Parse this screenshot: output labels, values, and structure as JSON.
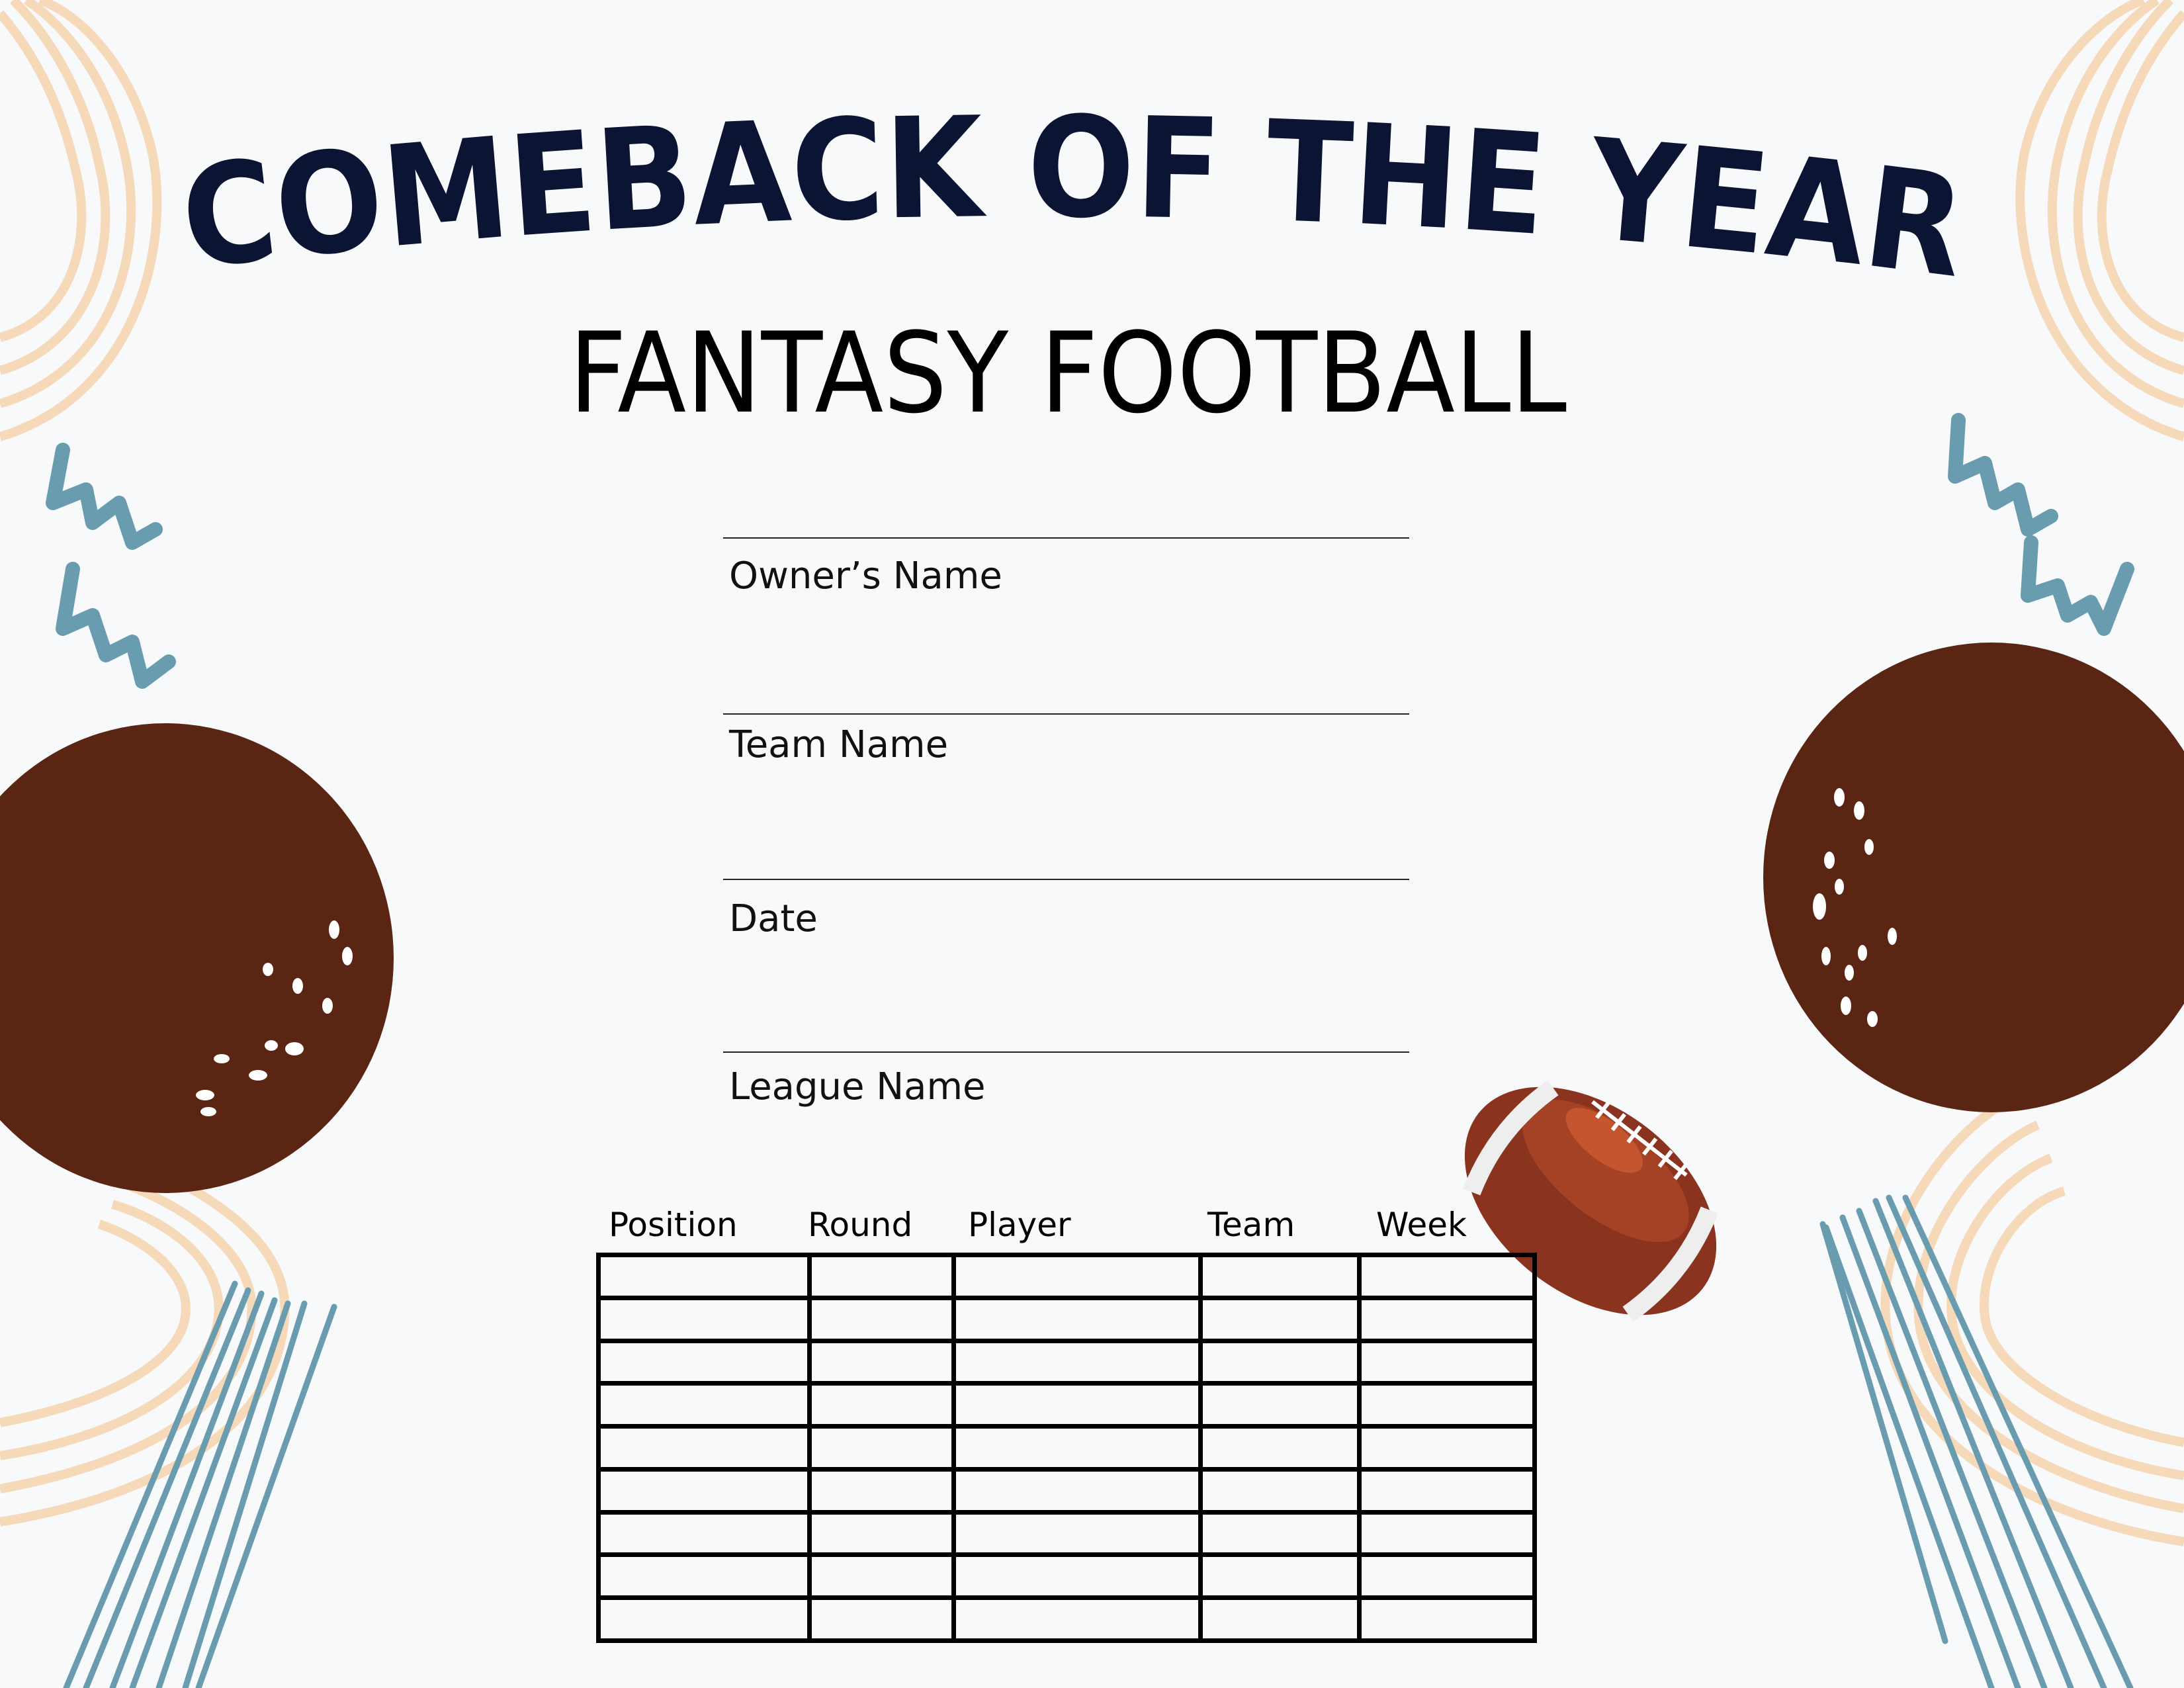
{
  "title": "COMEBACK OF THE YEAR",
  "subtitle": "FANTASY FOOTBALL",
  "fields": [
    {
      "label": "Owner’s Name",
      "value": ""
    },
    {
      "label": "Team Name",
      "value": ""
    },
    {
      "label": "Date",
      "value": ""
    },
    {
      "label": "League Name",
      "value": ""
    }
  ],
  "table": {
    "columns": [
      "Position",
      "Round",
      "Player",
      "Team",
      "Week"
    ],
    "row_count": 9
  },
  "colors": {
    "background": "#f8f9fb",
    "title": "#0c1433",
    "brown": "#5a2613",
    "peach": "#f6d9b8",
    "blue": "#6a9caf",
    "football": "#8a3420"
  },
  "icons": [
    "football-icon"
  ]
}
